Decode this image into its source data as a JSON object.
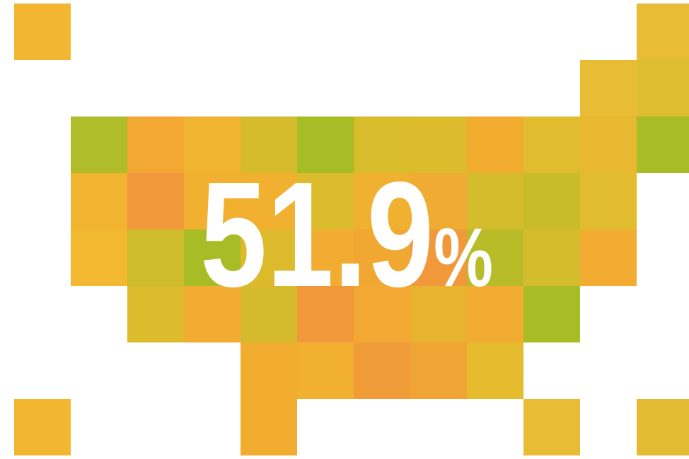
{
  "figure": {
    "value": "51.9",
    "unit": "%"
  }
}
